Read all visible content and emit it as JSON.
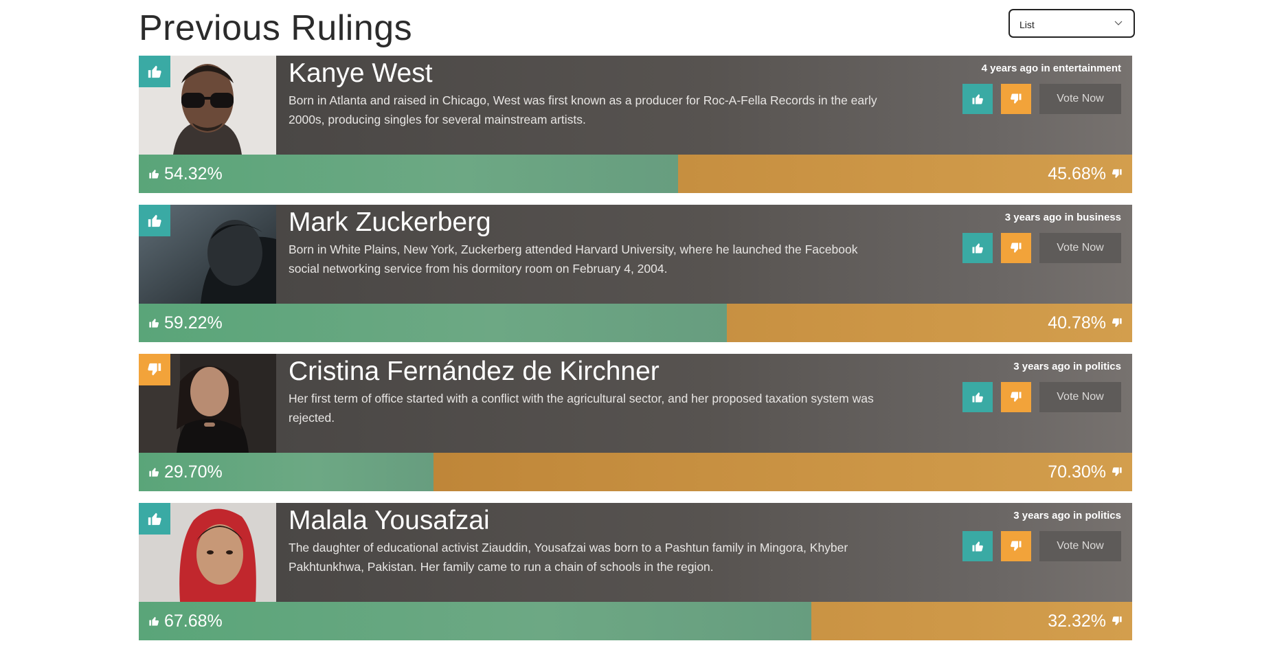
{
  "page": {
    "title": "Previous Rulings"
  },
  "view_select": {
    "value": "List"
  },
  "vote_now_label": "Vote Now",
  "colors": {
    "thumbs_up": "#3aaaa4",
    "thumbs_down": "#f2a33a",
    "yes_bar": "#6aa883",
    "no_bar": "#c48b3e"
  },
  "rulings": [
    {
      "name": "Kanye West",
      "description": "Born in Atlanta and raised in Chicago, West was first known as a producer for Roc-A-Fella Records in the early 2000s, producing singles for several mainstream artists.",
      "meta": "4 years ago in entertainment",
      "verdict": "thumbs-up",
      "yes_percent": 54.32,
      "no_percent": 45.68,
      "yes_label": "54.32%",
      "no_label": "45.68%"
    },
    {
      "name": "Mark Zuckerberg",
      "description": "Born in White Plains, New York, Zuckerberg attended Harvard University, where he launched the Facebook social networking service from his dormitory room on February 4, 2004.",
      "meta": "3 years ago in business",
      "verdict": "thumbs-up",
      "yes_percent": 59.22,
      "no_percent": 40.78,
      "yes_label": "59.22%",
      "no_label": "40.78%"
    },
    {
      "name": "Cristina Fernández de Kirchner",
      "description": "Her first term of office started with a conflict with the agricultural sector, and her proposed taxation system was rejected.",
      "meta": "3 years ago in politics",
      "verdict": "thumbs-down",
      "yes_percent": 29.7,
      "no_percent": 70.3,
      "yes_label": "29.70%",
      "no_label": "70.30%"
    },
    {
      "name": "Malala Yousafzai",
      "description": "The daughter of educational activist Ziauddin, Yousafzai was born to a Pashtun family in Mingora, Khyber Pakhtunkhwa, Pakistan. Her family came to run a chain of schools in the region.",
      "meta": "3 years ago in politics",
      "verdict": "thumbs-up",
      "yes_percent": 67.68,
      "no_percent": 32.32,
      "yes_label": "67.68%",
      "no_label": "32.32%"
    }
  ]
}
